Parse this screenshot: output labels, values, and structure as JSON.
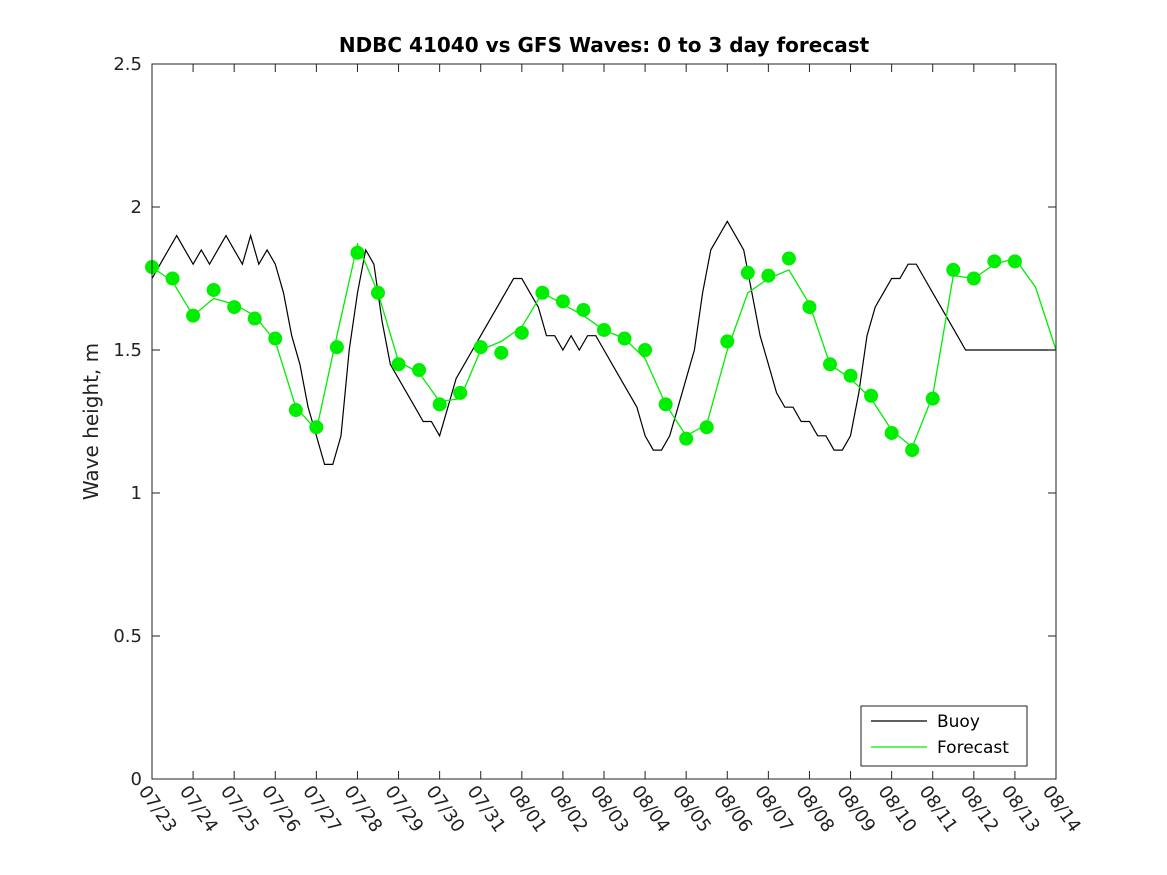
{
  "chart_data": {
    "type": "line",
    "title": "NDBC 41040 vs GFS Waves: 0 to 3 day forecast",
    "xlabel": "",
    "ylabel": "Wave height, m",
    "ylim": [
      0,
      2.5
    ],
    "yticks": [
      0,
      0.5,
      1,
      1.5,
      2,
      2.5
    ],
    "ytick_labels": [
      "0",
      "0.5",
      "1",
      "1.5",
      "2",
      "2.5"
    ],
    "xlim": [
      0,
      22
    ],
    "xtick_labels": [
      "07/23",
      "07/24",
      "07/25",
      "07/26",
      "07/27",
      "07/28",
      "07/29",
      "07/30",
      "07/31",
      "08/01",
      "08/02",
      "08/03",
      "08/04",
      "08/05",
      "08/06",
      "08/07",
      "08/08",
      "08/09",
      "08/10",
      "08/11",
      "08/12",
      "08/13",
      "08/14"
    ],
    "grid": false,
    "legend_position": "bottom-right",
    "colors": {
      "buoy": "#000000",
      "forecast": "#00ee00"
    },
    "series": [
      {
        "name": "Buoy",
        "kind": "line",
        "x": [
          0,
          0.2,
          0.4,
          0.6,
          0.8,
          1,
          1.2,
          1.4,
          1.6,
          1.8,
          2,
          2.2,
          2.4,
          2.6,
          2.8,
          3,
          3.2,
          3.4,
          3.6,
          3.8,
          4,
          4.2,
          4.4,
          4.6,
          4.8,
          5,
          5.2,
          5.4,
          5.6,
          5.8,
          6,
          6.2,
          6.4,
          6.6,
          6.8,
          7,
          7.2,
          7.4,
          7.6,
          7.8,
          8,
          8.2,
          8.4,
          8.6,
          8.8,
          9,
          9.2,
          9.4,
          9.6,
          9.8,
          10,
          10.2,
          10.4,
          10.6,
          10.8,
          11,
          11.2,
          11.4,
          11.6,
          11.8,
          12,
          12.2,
          12.4,
          12.6,
          12.8,
          13,
          13.2,
          13.4,
          13.6,
          13.8,
          14,
          14.2,
          14.4,
          14.6,
          14.8,
          15,
          15.2,
          15.4,
          15.6,
          15.8,
          16,
          16.2,
          16.4,
          16.6,
          16.8,
          17,
          17.2,
          17.4,
          17.6,
          17.8,
          18,
          18.2,
          18.4,
          18.6,
          18.8,
          19,
          19.2,
          19.4,
          19.6,
          19.8,
          20,
          20.2,
          20.4,
          20.6,
          20.8,
          21,
          21.2,
          21.4,
          21.6,
          21.8,
          22
        ],
        "y": [
          1.75,
          1.8,
          1.85,
          1.9,
          1.85,
          1.8,
          1.85,
          1.8,
          1.85,
          1.9,
          1.85,
          1.8,
          1.9,
          1.8,
          1.85,
          1.8,
          1.7,
          1.55,
          1.45,
          1.3,
          1.2,
          1.1,
          1.1,
          1.2,
          1.5,
          1.7,
          1.85,
          1.8,
          1.6,
          1.45,
          1.4,
          1.35,
          1.3,
          1.25,
          1.25,
          1.2,
          1.3,
          1.4,
          1.45,
          1.5,
          1.55,
          1.6,
          1.65,
          1.7,
          1.75,
          1.75,
          1.7,
          1.65,
          1.55,
          1.55,
          1.5,
          1.55,
          1.5,
          1.55,
          1.55,
          1.5,
          1.45,
          1.4,
          1.35,
          1.3,
          1.2,
          1.15,
          1.15,
          1.2,
          1.3,
          1.4,
          1.5,
          1.7,
          1.85,
          1.9,
          1.95,
          1.9,
          1.85,
          1.7,
          1.55,
          1.45,
          1.35,
          1.3,
          1.3,
          1.25,
          1.25,
          1.2,
          1.2,
          1.15,
          1.15,
          1.2,
          1.35,
          1.55,
          1.65,
          1.7,
          1.75,
          1.75,
          1.8,
          1.8,
          1.75,
          1.7,
          1.65,
          1.6,
          1.55,
          1.5,
          1.5,
          1.5,
          1.5,
          1.5,
          1.5,
          1.5,
          1.5,
          1.5,
          1.5,
          1.5,
          1.5
        ]
      },
      {
        "name": "Forecast",
        "kind": "line",
        "x": [
          0,
          0.5,
          1,
          1.5,
          2,
          2.5,
          3,
          3.5,
          4,
          4.5,
          5,
          5.5,
          6,
          6.5,
          7,
          7.5,
          8,
          8.5,
          9,
          9.5,
          10,
          10.5,
          11,
          11.5,
          12,
          12.5,
          13,
          13.5,
          14,
          14.5,
          15,
          15.5,
          16,
          16.5,
          17,
          17.5,
          18,
          18.5,
          19,
          19.5,
          20,
          20.5,
          21,
          21.5,
          22
        ],
        "y": [
          1.79,
          1.74,
          1.62,
          1.68,
          1.66,
          1.62,
          1.53,
          1.3,
          1.22,
          1.55,
          1.87,
          1.7,
          1.46,
          1.42,
          1.32,
          1.33,
          1.5,
          1.53,
          1.58,
          1.7,
          1.66,
          1.62,
          1.57,
          1.54,
          1.47,
          1.31,
          1.2,
          1.24,
          1.5,
          1.7,
          1.75,
          1.78,
          1.66,
          1.45,
          1.4,
          1.33,
          1.22,
          1.16,
          1.34,
          1.76,
          1.75,
          1.8,
          1.82,
          1.72,
          1.5
        ]
      },
      {
        "name": "Forecast markers",
        "kind": "markers",
        "x": [
          0,
          0.5,
          1,
          1.5,
          2,
          2.5,
          3,
          3.5,
          4,
          4.5,
          5,
          5.5,
          6,
          6.5,
          7,
          7.5,
          8,
          8.5,
          9,
          9.5,
          10,
          10.5,
          11,
          11.5,
          12,
          12.5,
          13,
          13.5,
          14,
          14.5,
          15,
          15.5,
          16,
          16.5,
          17,
          17.5,
          18,
          18.5,
          19,
          19.5,
          20,
          20.5,
          21
        ],
        "y": [
          1.79,
          1.75,
          1.62,
          1.71,
          1.65,
          1.61,
          1.54,
          1.29,
          1.23,
          1.51,
          1.84,
          1.7,
          1.45,
          1.43,
          1.31,
          1.35,
          1.51,
          1.49,
          1.56,
          1.7,
          1.67,
          1.64,
          1.57,
          1.54,
          1.5,
          1.31,
          1.19,
          1.23,
          1.53,
          1.77,
          1.76,
          1.82,
          1.65,
          1.45,
          1.41,
          1.34,
          1.21,
          1.15,
          1.33,
          1.78,
          1.75,
          1.81,
          1.81
        ]
      }
    ],
    "legend": [
      {
        "label": "Buoy",
        "color": "#000000"
      },
      {
        "label": "Forecast",
        "color": "#00ee00"
      }
    ]
  }
}
